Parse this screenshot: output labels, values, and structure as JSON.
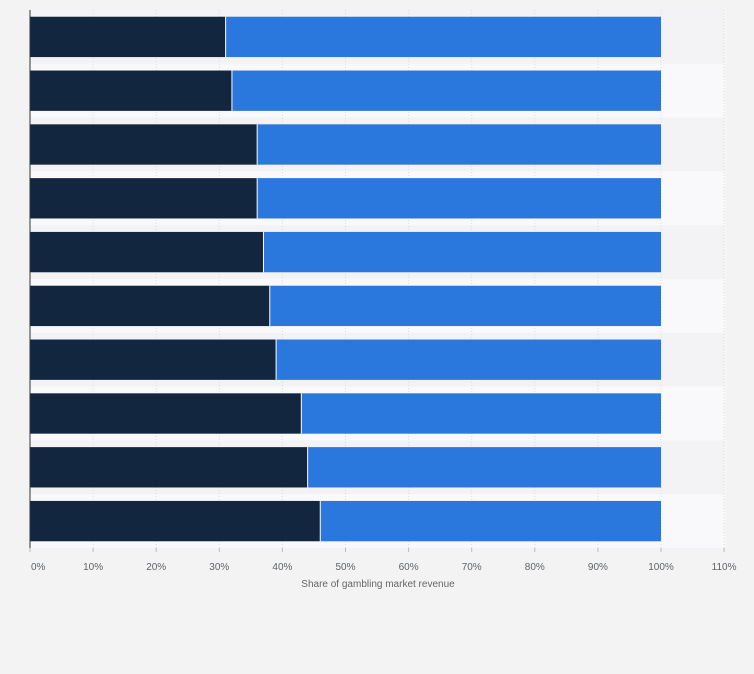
{
  "chart_data": {
    "type": "bar",
    "orientation": "horizontal",
    "stacked": true,
    "categories": [
      "",
      "",
      "",
      "",
      "",
      "",
      "",
      "",
      "",
      ""
    ],
    "series": [
      {
        "color": "#12263f",
        "values": [
          31,
          32,
          36,
          36,
          37,
          38,
          39,
          43,
          44,
          46
        ]
      },
      {
        "color": "#2a77dd",
        "values": [
          69,
          68,
          64,
          64,
          63,
          62,
          61,
          57,
          56,
          54
        ]
      }
    ],
    "xlabel": "Share of gambling market revenue",
    "ylabel": "",
    "xlim": [
      0,
      110
    ],
    "ticks": [
      "0%",
      "10%",
      "20%",
      "30%",
      "40%",
      "50%",
      "60%",
      "70%",
      "80%",
      "90%",
      "100%",
      "110%"
    ],
    "grid": true,
    "legend": "none"
  }
}
